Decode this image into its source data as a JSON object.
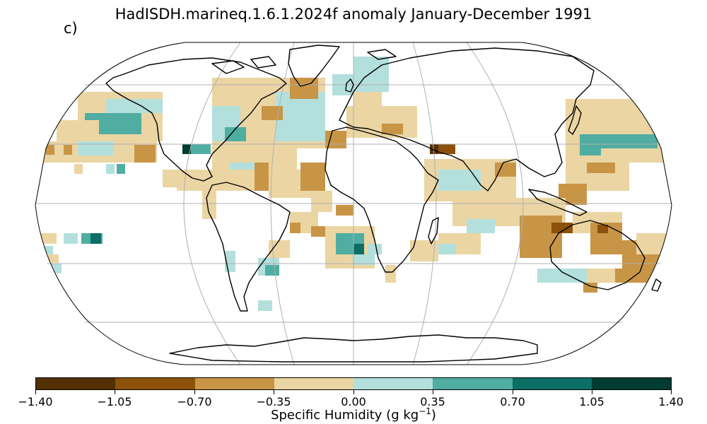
{
  "title": "HadISDH.marineq.1.6.1.2024f anomaly January-December 1991",
  "panel_label": "c)",
  "colorbar": {
    "label_prefix": "Specific Humidity (g kg",
    "label_exp": "−1",
    "label_suffix": ")",
    "ticks": [
      "−1.40",
      "−1.05",
      "−0.70",
      "−0.35",
      "0.00",
      "0.35",
      "0.70",
      "1.05",
      "1.40"
    ],
    "colors": [
      "#543005",
      "#8c510a",
      "#c89546",
      "#ebd5a3",
      "#b3e0dc",
      "#4fada1",
      "#0d6e66",
      "#003c30"
    ],
    "tick_values": [
      -1.4,
      -1.05,
      -0.7,
      -0.35,
      0,
      0.35,
      0.7,
      1.05,
      1.4
    ]
  },
  "map": {
    "projection": "Robinson",
    "gridlines": true,
    "grid_color": "#b0b0b0",
    "coastline_color": "#000000"
  }
}
